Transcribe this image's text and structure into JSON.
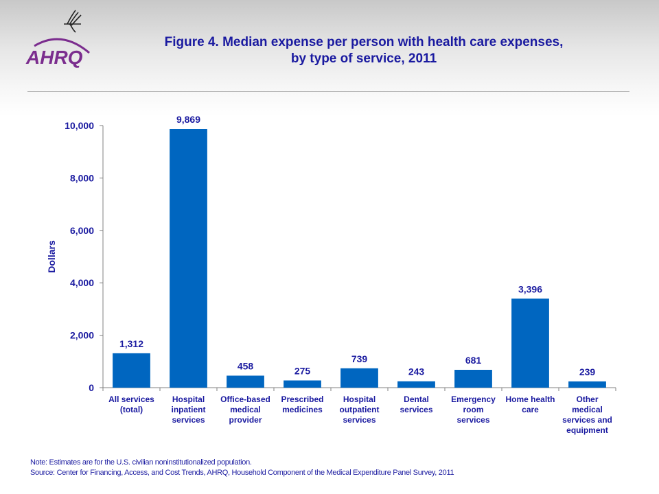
{
  "header": {
    "logo_text": "AHRQ",
    "title_line1": "Figure 4. Median expense per person with health care expenses,",
    "title_line2": "by type of service, 2011"
  },
  "colors": {
    "bar": "#0066c0",
    "text": "#1a1aa0",
    "logo": "#7b2d8e",
    "axis": "#808080"
  },
  "chart_data": {
    "type": "bar",
    "title": "Figure 4. Median expense per person with health care expenses, by type of service, 2011",
    "xlabel": "",
    "ylabel": "Dollars",
    "ylim": [
      0,
      10000
    ],
    "yticks": [
      0,
      2000,
      4000,
      6000,
      8000,
      10000
    ],
    "ytick_labels": [
      "0",
      "2,000",
      "4,000",
      "6,000",
      "8,000",
      "10,000"
    ],
    "grid": false,
    "categories": [
      [
        "All services",
        "(total)"
      ],
      [
        "Hospital",
        "inpatient",
        "services"
      ],
      [
        "Office-based",
        "medical",
        "provider"
      ],
      [
        "Prescribed",
        "medicines"
      ],
      [
        "Hospital",
        "outpatient",
        "services"
      ],
      [
        "Dental",
        "services"
      ],
      [
        "Emergency",
        "room",
        "services"
      ],
      [
        "Home health",
        "care"
      ],
      [
        "Other",
        "medical",
        "services and",
        "equipment"
      ]
    ],
    "values": [
      1312,
      9869,
      458,
      275,
      739,
      243,
      681,
      3396,
      239
    ],
    "value_labels": [
      "1,312",
      "9,869",
      "458",
      "275",
      "739",
      "243",
      "681",
      "3,396",
      "239"
    ]
  },
  "footer": {
    "note": "Note: Estimates are for the U.S. civilian noninstitutionalized population.",
    "source": "Source: Center for Financing, Access, and Cost Trends, AHRQ, Household Component of the Medical Expenditure Panel Survey,  2011"
  }
}
